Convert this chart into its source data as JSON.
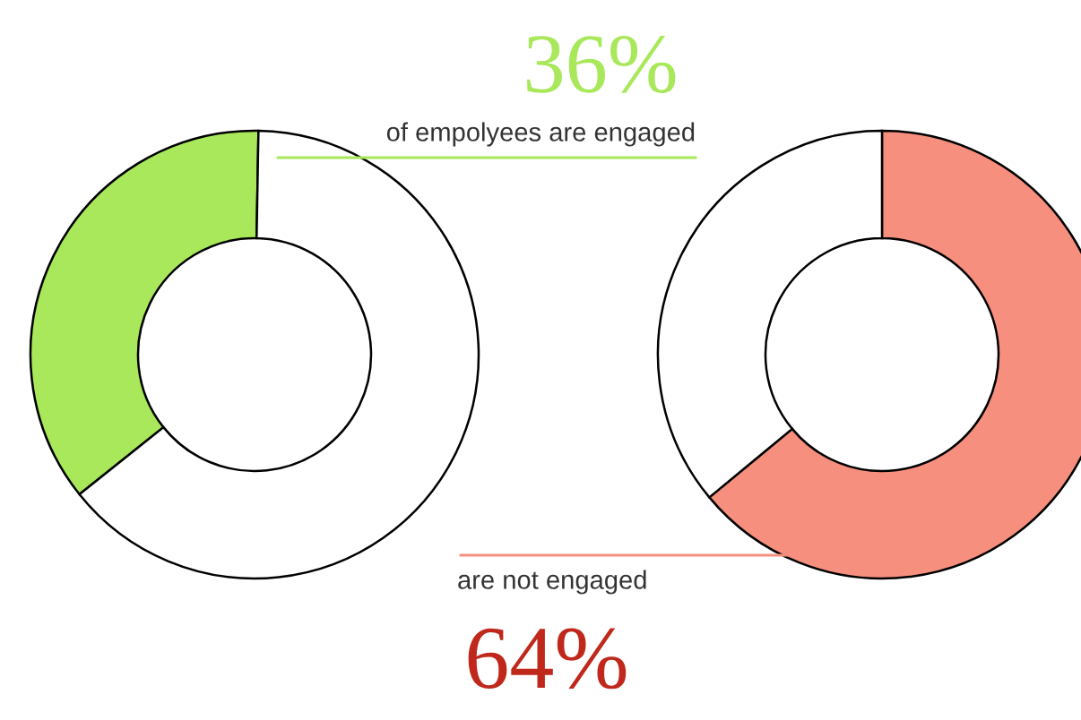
{
  "chart_data": [
    {
      "type": "donut",
      "categories": [
        null,
        null
      ],
      "values": [
        36,
        64
      ],
      "colors": [
        "#a8e85a",
        "#ffffff"
      ],
      "annotations": [
        "36%",
        "of empolyees are engaged"
      ]
    },
    {
      "type": "donut",
      "categories": [
        null,
        null
      ],
      "values": [
        64,
        36
      ],
      "colors": [
        "#f78f7e",
        "#ffffff"
      ],
      "annotations": [
        "are not engaged",
        "64%"
      ]
    }
  ]
}
